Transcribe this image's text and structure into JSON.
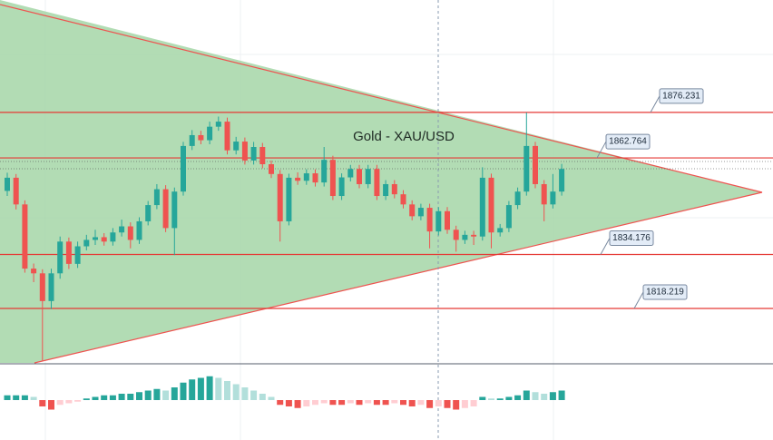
{
  "chart_data": {
    "type": "candlestick",
    "title": "Gold - XAU/USD",
    "ylim": [
      1802.1,
      1909.5
    ],
    "up_color": "#26a69a",
    "down_color": "#ef5350",
    "level_color": "#e53935",
    "levels": [
      1876.231,
      1862.764,
      1834.176,
      1818.219
    ],
    "open": [
      1853.0,
      1856.9,
      1849.0,
      1830.0,
      1828.6,
      1820.4,
      1828.6,
      1838.0,
      1831.4,
      1836.6,
      1838.5,
      1839.3,
      1838.0,
      1840.7,
      1842.5,
      1838.5,
      1844.0,
      1848.8,
      1853.5,
      1842.0,
      1852.8,
      1866.3,
      1869.5,
      1868.0,
      1872.0,
      1873.5,
      1865.0,
      1867.6,
      1862.0,
      1866.0,
      1860.9,
      1858.0,
      1844.0,
      1856.9,
      1856.0,
      1858.2,
      1855.5,
      1862.2,
      1851.5,
      1857.0,
      1859.5,
      1855.0,
      1859.5,
      1851.5,
      1855.0,
      1852.0,
      1849.0,
      1845.5,
      1848.0,
      1841.0,
      1847.0,
      1841.5,
      1838.5,
      1840.0,
      1839.5,
      1856.9,
      1840.7,
      1842.0,
      1848.8,
      1852.8,
      1866.3,
      1855.0,
      1849.0,
      1852.8
    ],
    "high": [
      1858.4,
      1858.0,
      1850.2,
      1831.5,
      1829.8,
      1830.0,
      1839.5,
      1839.2,
      1838.0,
      1840.0,
      1841.5,
      1840.5,
      1842.0,
      1844.5,
      1843.7,
      1845.2,
      1850.0,
      1855.0,
      1854.7,
      1854.0,
      1867.5,
      1871.0,
      1870.8,
      1873.5,
      1875.0,
      1874.7,
      1869.0,
      1868.8,
      1867.5,
      1867.2,
      1862.0,
      1859.2,
      1858.1,
      1858.5,
      1859.4,
      1859.4,
      1866.0,
      1863.4,
      1858.2,
      1860.7,
      1860.7,
      1860.7,
      1860.7,
      1856.2,
      1856.2,
      1853.2,
      1850.2,
      1849.2,
      1849.2,
      1848.2,
      1848.2,
      1842.7,
      1841.2,
      1841.2,
      1860.0,
      1858.1,
      1843.2,
      1850.0,
      1854.0,
      1876.2,
      1867.5,
      1856.2,
      1858.0,
      1861.0
    ],
    "low": [
      1851.5,
      1847.5,
      1828.8,
      1826.0,
      1802.8,
      1818.0,
      1827.0,
      1829.9,
      1830.2,
      1835.4,
      1837.0,
      1836.8,
      1836.8,
      1839.5,
      1836.0,
      1837.3,
      1842.8,
      1847.6,
      1840.8,
      1834.0,
      1851.6,
      1865.1,
      1866.8,
      1866.8,
      1870.8,
      1863.8,
      1863.8,
      1860.8,
      1860.8,
      1859.7,
      1856.8,
      1838.0,
      1842.8,
      1854.8,
      1854.8,
      1854.3,
      1854.3,
      1850.3,
      1850.3,
      1855.8,
      1853.8,
      1853.8,
      1850.3,
      1850.3,
      1850.8,
      1847.8,
      1844.3,
      1844.3,
      1836.0,
      1839.8,
      1840.3,
      1835.0,
      1837.3,
      1837.0,
      1838.3,
      1836.0,
      1839.5,
      1840.8,
      1847.6,
      1851.6,
      1853.8,
      1844.0,
      1847.8,
      1851.6
    ],
    "close": [
      1856.9,
      1849.0,
      1830.0,
      1828.6,
      1820.4,
      1828.6,
      1838.0,
      1831.4,
      1836.6,
      1838.5,
      1839.3,
      1838.0,
      1840.7,
      1842.5,
      1838.5,
      1844.0,
      1848.8,
      1853.5,
      1842.0,
      1852.8,
      1866.3,
      1869.5,
      1868.0,
      1872.0,
      1873.5,
      1865.0,
      1867.6,
      1862.0,
      1866.0,
      1860.9,
      1858.0,
      1844.0,
      1856.9,
      1856.0,
      1858.2,
      1855.5,
      1862.2,
      1851.5,
      1857.0,
      1859.5,
      1855.0,
      1859.5,
      1851.5,
      1855.0,
      1852.0,
      1849.0,
      1845.5,
      1848.0,
      1841.0,
      1847.0,
      1841.5,
      1838.5,
      1840.0,
      1839.5,
      1856.9,
      1840.7,
      1842.0,
      1848.8,
      1852.8,
      1866.3,
      1855.0,
      1849.0,
      1852.8,
      1859.5
    ],
    "macd_ylim": [
      -2,
      2
    ],
    "macd_histogram": [
      0.3,
      0.3,
      0.3,
      0.2,
      -0.4,
      -0.6,
      -0.3,
      -0.2,
      -0.1,
      0.1,
      0.2,
      0.3,
      0.3,
      0.4,
      0.4,
      0.5,
      0.6,
      0.7,
      0.6,
      0.8,
      1.1,
      1.3,
      1.4,
      1.5,
      1.4,
      1.2,
      1.0,
      0.8,
      0.6,
      0.4,
      0.2,
      -0.3,
      -0.4,
      -0.5,
      -0.4,
      -0.3,
      -0.2,
      -0.3,
      -0.3,
      -0.2,
      -0.3,
      -0.2,
      -0.3,
      -0.3,
      -0.2,
      -0.3,
      -0.4,
      -0.3,
      -0.5,
      -0.4,
      -0.5,
      -0.6,
      -0.5,
      -0.4,
      0.2,
      0.1,
      0.1,
      0.2,
      0.3,
      0.6,
      0.5,
      0.4,
      0.5,
      0.6
    ]
  }
}
